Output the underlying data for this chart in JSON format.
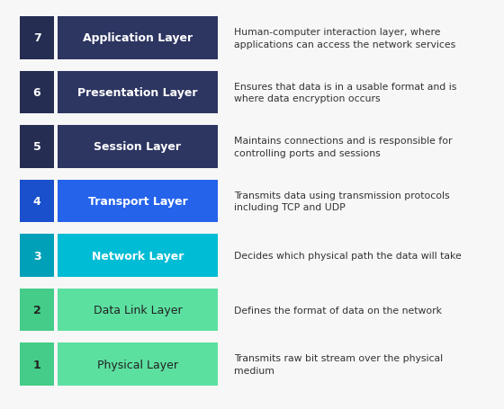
{
  "layers": [
    {
      "number": 7,
      "name": "Application Layer",
      "description": "Human-computer interaction layer, where\napplications can access the network services",
      "bar_color": "#2d3561",
      "num_bg": "#252d52",
      "text_color": "#ffffff",
      "name_bold": true
    },
    {
      "number": 6,
      "name": "Presentation Layer",
      "description": "Ensures that data is in a usable format and is\nwhere data encryption occurs",
      "bar_color": "#2d3561",
      "num_bg": "#252d52",
      "text_color": "#ffffff",
      "name_bold": true
    },
    {
      "number": 5,
      "name": "Session Layer",
      "description": "Maintains connections and is responsible for\ncontrolling ports and sessions",
      "bar_color": "#2d3561",
      "num_bg": "#252d52",
      "text_color": "#ffffff",
      "name_bold": true
    },
    {
      "number": 4,
      "name": "Transport Layer",
      "description": "Transmits data using transmission protocols\nincluding TCP and UDP",
      "bar_color": "#2563eb",
      "num_bg": "#1a50cc",
      "text_color": "#ffffff",
      "name_bold": true
    },
    {
      "number": 3,
      "name": "Network Layer",
      "description": "Decides which physical path the data will take",
      "bar_color": "#00bcd4",
      "num_bg": "#00a0b8",
      "text_color": "#ffffff",
      "name_bold": true
    },
    {
      "number": 2,
      "name": "Data Link Layer",
      "description": "Defines the format of data on the network",
      "bar_color": "#5ce0a0",
      "num_bg": "#44cc88",
      "text_color": "#222222",
      "name_bold": false
    },
    {
      "number": 1,
      "name": "Physical Layer",
      "description": "Transmits raw bit stream over the physical\nmedium",
      "bar_color": "#5ce0a0",
      "num_bg": "#44cc88",
      "text_color": "#222222",
      "name_bold": false
    }
  ],
  "background_color": "#f7f7f7",
  "desc_text_color": "#333333",
  "fig_width": 5.6,
  "fig_height": 4.56,
  "dpi": 100
}
